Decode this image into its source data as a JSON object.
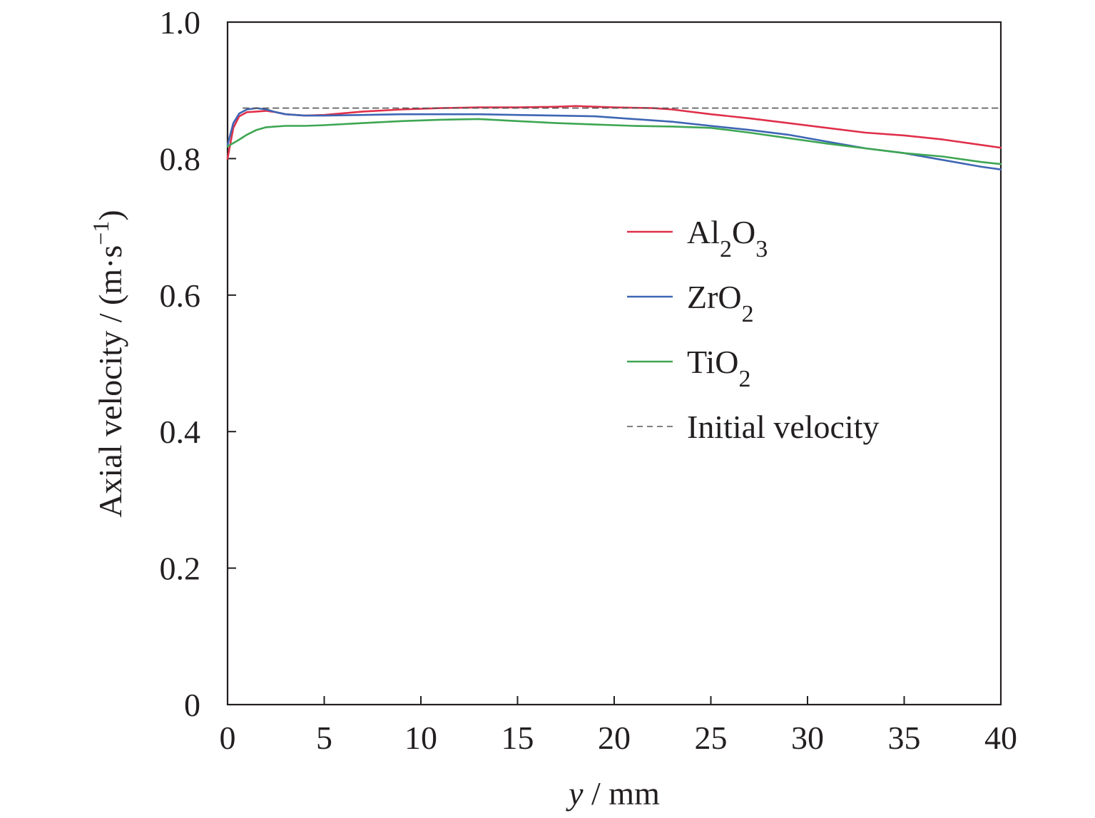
{
  "chart_data": {
    "type": "line",
    "title": "",
    "xlabel": {
      "var": "y",
      "rest": " / mm"
    },
    "ylabel": {
      "main": "Axial velocity / (m·s",
      "sup": "−1",
      "close": ")"
    },
    "xlim": [
      0,
      40
    ],
    "ylim": [
      0,
      1.0
    ],
    "xticks": [
      0,
      5,
      10,
      15,
      20,
      25,
      30,
      35,
      40
    ],
    "xtick_labels": [
      "0",
      "5",
      "10",
      "15",
      "20",
      "25",
      "30",
      "35",
      "40"
    ],
    "yticks": [
      0,
      0.2,
      0.4,
      0.6,
      0.8,
      1.0
    ],
    "ytick_labels": [
      "0",
      "0.2",
      "0.4",
      "0.6",
      "0.8",
      "1.0"
    ],
    "grid": false,
    "legend_position": "right",
    "series": [
      {
        "name": "Al2O3",
        "label_parts": [
          [
            "Al",
            ""
          ],
          [
            "2",
            "sub"
          ],
          [
            "O",
            ""
          ],
          [
            "3",
            "sub"
          ]
        ],
        "color": "#e0304a",
        "dash": "solid",
        "x": [
          0,
          0.3,
          0.6,
          1.0,
          1.5,
          2.0,
          2.5,
          3.0,
          4.0,
          5.0,
          7.0,
          9.0,
          11.0,
          13.0,
          15.0,
          17.0,
          18.0,
          20.0,
          22.0,
          23.0,
          25.0,
          27.0,
          29.0,
          31.0,
          33.0,
          35.0,
          37.0,
          39.0,
          40.0
        ],
        "y": [
          0.8,
          0.845,
          0.862,
          0.868,
          0.869,
          0.87,
          0.868,
          0.865,
          0.863,
          0.864,
          0.869,
          0.872,
          0.874,
          0.875,
          0.875,
          0.876,
          0.877,
          0.875,
          0.874,
          0.872,
          0.865,
          0.859,
          0.852,
          0.845,
          0.838,
          0.834,
          0.828,
          0.82,
          0.816
        ]
      },
      {
        "name": "ZrO2",
        "label_parts": [
          [
            "ZrO",
            ""
          ],
          [
            "2",
            "sub"
          ]
        ],
        "color": "#3e66b4",
        "dash": "solid",
        "x": [
          0,
          0.3,
          0.6,
          1.0,
          1.5,
          2.0,
          2.5,
          3.0,
          4.0,
          5.0,
          7.0,
          9.0,
          11.0,
          13.0,
          15.0,
          17.0,
          19.0,
          21.0,
          23.0,
          25.0,
          27.0,
          29.0,
          31.0,
          33.0,
          35.0,
          37.0,
          39.0,
          40.0
        ],
        "y": [
          0.82,
          0.852,
          0.866,
          0.872,
          0.874,
          0.872,
          0.868,
          0.865,
          0.863,
          0.863,
          0.864,
          0.865,
          0.865,
          0.865,
          0.864,
          0.863,
          0.862,
          0.858,
          0.854,
          0.848,
          0.842,
          0.835,
          0.825,
          0.815,
          0.808,
          0.798,
          0.788,
          0.784
        ]
      },
      {
        "name": "TiO2",
        "label_parts": [
          [
            "TiO",
            ""
          ],
          [
            "2",
            "sub"
          ]
        ],
        "color": "#3ea653",
        "dash": "solid",
        "x": [
          0,
          0.5,
          1.0,
          1.5,
          2.0,
          3.0,
          4.0,
          5.0,
          7.0,
          9.0,
          11.0,
          13.0,
          15.0,
          17.0,
          19.0,
          21.0,
          23.0,
          25.0,
          27.0,
          29.0,
          31.0,
          33.0,
          35.0,
          37.0,
          39.0,
          40.0
        ],
        "y": [
          0.818,
          0.826,
          0.835,
          0.842,
          0.846,
          0.848,
          0.848,
          0.849,
          0.852,
          0.855,
          0.857,
          0.858,
          0.855,
          0.852,
          0.85,
          0.848,
          0.847,
          0.845,
          0.838,
          0.83,
          0.822,
          0.815,
          0.808,
          0.803,
          0.795,
          0.792
        ]
      },
      {
        "name": "Initial velocity",
        "label_parts": [
          [
            "Initial velocity",
            ""
          ]
        ],
        "color": "#555555",
        "dash": "dashed",
        "x": [
          0.8,
          40
        ],
        "y": [
          0.874,
          0.874
        ]
      }
    ]
  }
}
